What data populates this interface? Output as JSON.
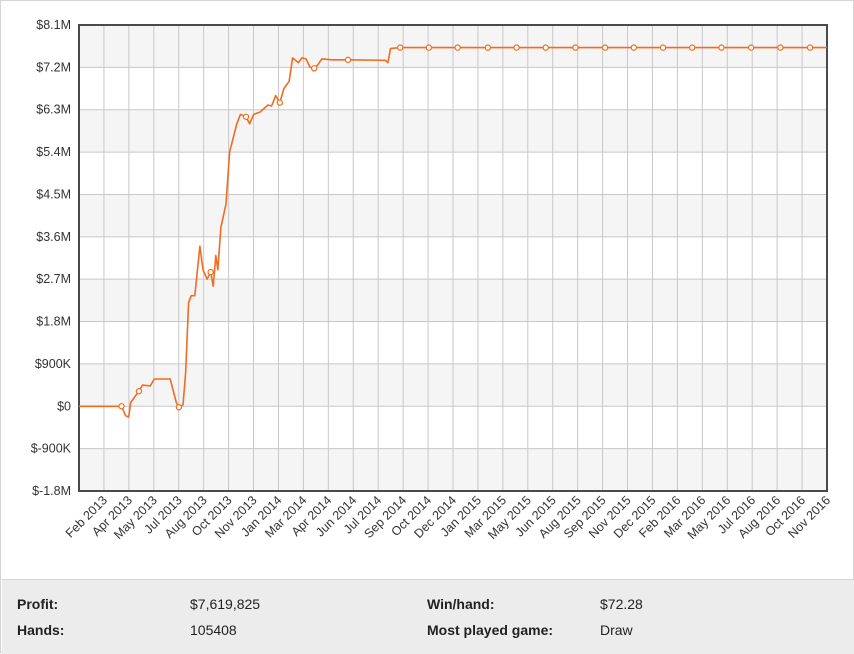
{
  "chart_data": {
    "type": "line",
    "y_ticks": [
      "$8.1M",
      "$7.2M",
      "$6.3M",
      "$5.4M",
      "$4.5M",
      "$3.6M",
      "$2.7M",
      "$1.8M",
      "$900K",
      "$0",
      "$-900K",
      "$-1.8M"
    ],
    "x_ticks": [
      "Feb 2013",
      "Apr 2013",
      "May 2013",
      "Jul 2013",
      "Aug 2013",
      "Oct 2013",
      "Nov 2013",
      "Jan 2014",
      "Mar 2014",
      "Apr 2014",
      "Jun 2014",
      "Jul 2014",
      "Sep 2014",
      "Oct 2014",
      "Dec 2014",
      "Jan 2015",
      "Mar 2015",
      "May 2015",
      "Jun 2015",
      "Aug 2015",
      "Sep 2015",
      "Nov 2015",
      "Dec 2015",
      "Feb 2016",
      "Mar 2016",
      "May 2016",
      "Jul 2016",
      "Aug 2016",
      "Oct 2016",
      "Nov 2016"
    ],
    "ylim": [
      -1800000,
      8100000
    ],
    "xlim": [
      "2013-01-01",
      "2016-12-31"
    ],
    "grid": true,
    "series": [
      {
        "color": "#f26b21",
        "points": [
          [
            "2013-01-01",
            0
          ],
          [
            "2013-03-25",
            0
          ],
          [
            "2013-04-02",
            -200000
          ],
          [
            "2013-04-08",
            -230000
          ],
          [
            "2013-04-12",
            80000
          ],
          [
            "2013-04-28",
            320000
          ],
          [
            "2013-05-05",
            450000
          ],
          [
            "2013-05-20",
            430000
          ],
          [
            "2013-05-28",
            580000
          ],
          [
            "2013-06-28",
            580000
          ],
          [
            "2013-07-10",
            80000
          ],
          [
            "2013-07-15",
            -20000
          ],
          [
            "2013-07-23",
            30000
          ],
          [
            "2013-07-28",
            700000
          ],
          [
            "2013-08-03",
            2200000
          ],
          [
            "2013-08-08",
            2350000
          ],
          [
            "2013-08-15",
            2350000
          ],
          [
            "2013-08-25",
            3400000
          ],
          [
            "2013-08-31",
            2900000
          ],
          [
            "2013-09-08",
            2700000
          ],
          [
            "2013-09-15",
            2850000
          ],
          [
            "2013-09-20",
            2550000
          ],
          [
            "2013-09-25",
            3200000
          ],
          [
            "2013-09-29",
            2900000
          ],
          [
            "2013-10-05",
            3800000
          ],
          [
            "2013-10-15",
            4300000
          ],
          [
            "2013-10-22",
            5400000
          ],
          [
            "2013-11-05",
            6000000
          ],
          [
            "2013-11-12",
            6200000
          ],
          [
            "2013-11-23",
            6150000
          ],
          [
            "2013-11-30",
            6000000
          ],
          [
            "2013-12-08",
            6200000
          ],
          [
            "2013-12-20",
            6250000
          ],
          [
            "2014-01-05",
            6400000
          ],
          [
            "2014-01-12",
            6380000
          ],
          [
            "2014-01-20",
            6600000
          ],
          [
            "2014-01-28",
            6450000
          ],
          [
            "2014-02-05",
            6750000
          ],
          [
            "2014-02-15",
            6900000
          ],
          [
            "2014-02-22",
            7400000
          ],
          [
            "2014-03-05",
            7300000
          ],
          [
            "2014-03-12",
            7400000
          ],
          [
            "2014-03-20",
            7380000
          ],
          [
            "2014-03-28",
            7200000
          ],
          [
            "2014-04-05",
            7180000
          ],
          [
            "2014-04-12",
            7250000
          ],
          [
            "2014-04-20",
            7380000
          ],
          [
            "2014-05-10",
            7360000
          ],
          [
            "2014-06-10",
            7360000
          ],
          [
            "2014-08-22",
            7350000
          ],
          [
            "2014-08-27",
            7300000
          ],
          [
            "2014-09-01",
            7600000
          ],
          [
            "2014-09-20",
            7619825
          ],
          [
            "2016-12-31",
            7619825
          ]
        ],
        "markers": [
          [
            "2013-03-25",
            0
          ],
          [
            "2013-04-28",
            320000
          ],
          [
            "2013-07-15",
            -20000
          ],
          [
            "2013-09-15",
            2850000
          ],
          [
            "2013-11-23",
            6150000
          ],
          [
            "2014-01-28",
            6450000
          ],
          [
            "2014-04-05",
            7180000
          ],
          [
            "2014-06-10",
            7360000
          ],
          [
            "2014-09-20",
            7619825
          ],
          [
            "2014-11-15",
            7619825
          ],
          [
            "2015-01-10",
            7619825
          ],
          [
            "2015-03-10",
            7619825
          ],
          [
            "2015-05-05",
            7619825
          ],
          [
            "2015-07-01",
            7619825
          ],
          [
            "2015-08-28",
            7619825
          ],
          [
            "2015-10-25",
            7619825
          ],
          [
            "2015-12-20",
            7619825
          ],
          [
            "2016-02-15",
            7619825
          ],
          [
            "2016-04-12",
            7619825
          ],
          [
            "2016-06-08",
            7619825
          ],
          [
            "2016-08-05",
            7619825
          ],
          [
            "2016-10-01",
            7619825
          ],
          [
            "2016-11-28",
            7619825
          ]
        ]
      }
    ]
  },
  "stats": {
    "profit_label": "Profit:",
    "profit_value": "$7,619,825",
    "hands_label": "Hands:",
    "hands_value": "105408",
    "winhand_label": "Win/hand:",
    "winhand_value": "$72.28",
    "game_label": "Most played game:",
    "game_value": "Draw"
  }
}
